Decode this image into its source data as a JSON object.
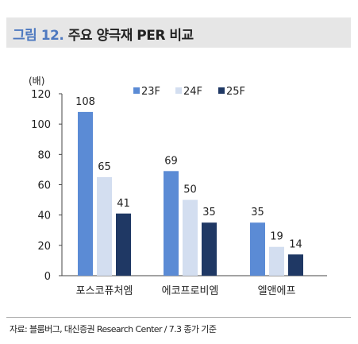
{
  "header": {
    "figure_number": "그림 12.",
    "title_text": "주요 양극재 PER 비교"
  },
  "source": "자료: 블룸버그, 대신증권 Research Center / 7.3 종가 기준",
  "chart_data": {
    "type": "bar",
    "title": "주요 양극재 PER 비교",
    "y_unit": "(배)",
    "categories": [
      "포스코퓨처엠",
      "에코프로비엠",
      "엘앤에프"
    ],
    "series": [
      {
        "name": "23F",
        "values": [
          108,
          69,
          35
        ],
        "color": "#5b8bd5"
      },
      {
        "name": "24F",
        "values": [
          65,
          50,
          19
        ],
        "color": "#d3def0"
      },
      {
        "name": "25F",
        "values": [
          41,
          35,
          14
        ],
        "color": "#1f3864"
      }
    ],
    "ylim": [
      0,
      120
    ],
    "yticks": [
      0,
      20,
      40,
      60,
      80,
      100,
      120
    ],
    "grid": false,
    "legend_position": "top-right",
    "data_labels": true
  }
}
